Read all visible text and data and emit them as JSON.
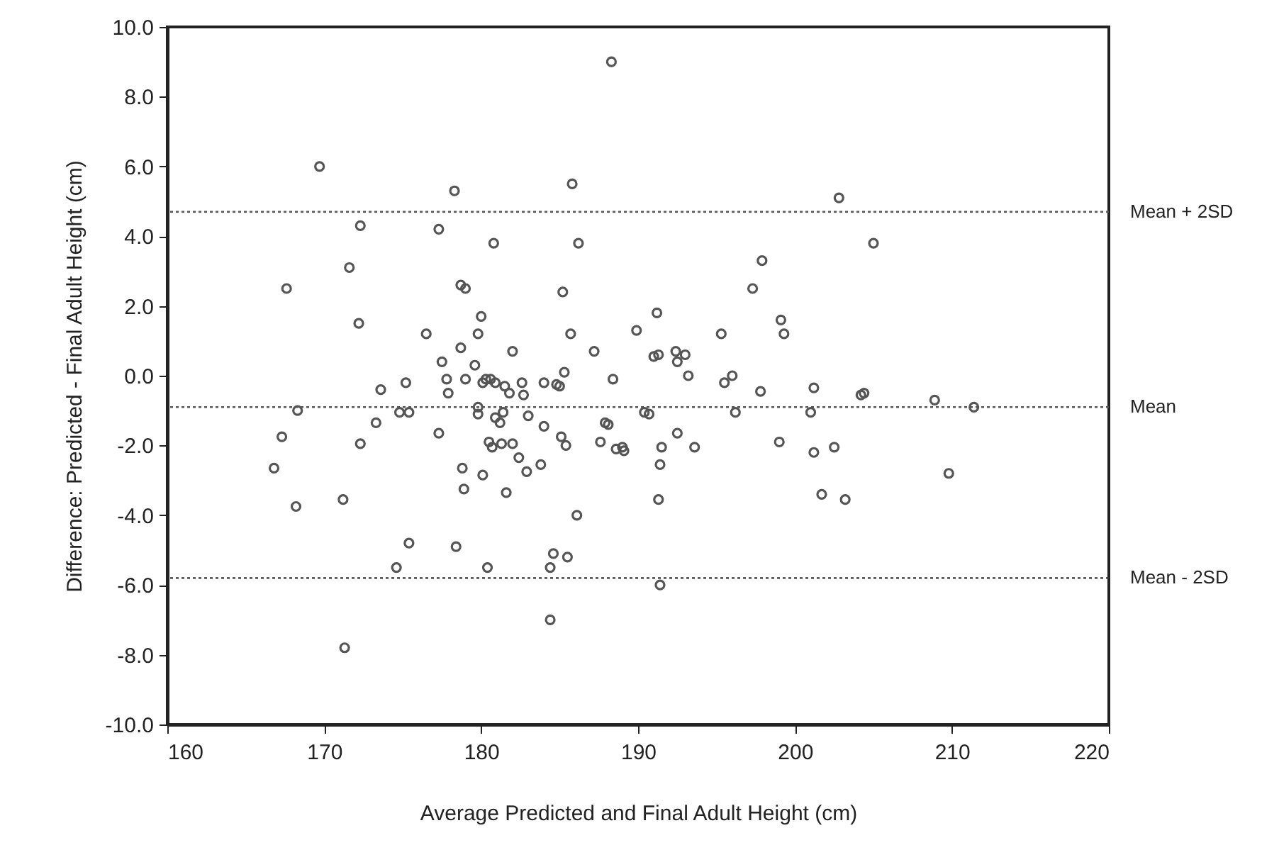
{
  "chart_data": {
    "type": "scatter",
    "xlabel": "Average Predicted and Final Adult Height (cm)",
    "ylabel": "Difference: Predicted - Final Adult Height (cm)",
    "xlim": [
      160,
      220
    ],
    "xticks": [
      160,
      170,
      180,
      190,
      200,
      210,
      220
    ],
    "ylim": [
      -10,
      10
    ],
    "yticks": [
      {
        "value": -10,
        "label": "-10.0"
      },
      {
        "value": -8,
        "label": "-8.0"
      },
      {
        "value": -6,
        "label": "-6.0"
      },
      {
        "value": -4,
        "label": "-4.0"
      },
      {
        "value": -2,
        "label": "-2.0"
      },
      {
        "value": 0,
        "label": "0.0"
      },
      {
        "value": 2,
        "label": "2.0"
      },
      {
        "value": 4,
        "label": "4.0"
      },
      {
        "value": 6,
        "label": "6.0"
      },
      {
        "value": 8,
        "label": "8.0"
      },
      {
        "value": 10,
        "label": "10.0"
      }
    ],
    "grid": false,
    "marker": "circle",
    "x": [
      166.8,
      167.3,
      167.6,
      168.2,
      168.3,
      169.7,
      171.2,
      171.3,
      171.6,
      172.2,
      172.3,
      172.3,
      173.3,
      173.6,
      174.8,
      174.6,
      175.2,
      175.4,
      175.4,
      176.5,
      177.3,
      177.3,
      177.5,
      177.8,
      177.9,
      178.3,
      178.4,
      178.7,
      178.7,
      178.8,
      178.9,
      179.0,
      179.0,
      179.6,
      179.8,
      179.8,
      179.8,
      180.0,
      180.1,
      180.1,
      180.3,
      180.5,
      180.4,
      180.6,
      180.7,
      180.8,
      180.9,
      180.9,
      181.2,
      181.4,
      181.3,
      181.5,
      181.6,
      181.8,
      182.0,
      182.0,
      182.4,
      182.6,
      182.7,
      182.9,
      183.0,
      183.8,
      184.0,
      184.0,
      184.4,
      184.4,
      184.6,
      184.8,
      185.0,
      185.1,
      185.2,
      185.3,
      185.4,
      185.5,
      185.7,
      185.8,
      186.2,
      186.1,
      187.2,
      187.6,
      187.9,
      188.1,
      188.3,
      188.4,
      188.6,
      189.0,
      189.1,
      189.9,
      190.4,
      190.7,
      191.0,
      191.2,
      191.3,
      191.3,
      191.4,
      191.4,
      191.5,
      192.4,
      192.5,
      192.5,
      193.0,
      193.2,
      193.6,
      195.3,
      195.5,
      196.0,
      196.2,
      197.3,
      197.8,
      197.9,
      199.0,
      199.1,
      199.3,
      201.0,
      201.2,
      201.2,
      201.7,
      202.5,
      202.8,
      203.2,
      204.2,
      204.4,
      205.0,
      208.9,
      209.8,
      211.4
    ],
    "series": [
      {
        "color": "#555555",
        "values": [
          -2.65,
          -1.75,
          2.5,
          -3.75,
          -1.0,
          6.0,
          -3.55,
          -7.8,
          3.1,
          1.5,
          4.3,
          -1.95,
          -1.35,
          -0.4,
          -1.05,
          -5.5,
          -0.2,
          -1.05,
          -4.8,
          1.2,
          4.2,
          -1.65,
          0.4,
          -0.1,
          -0.5,
          5.3,
          -4.9,
          0.8,
          2.6,
          -2.65,
          -3.25,
          2.5,
          -0.1,
          0.3,
          1.2,
          -0.9,
          -1.1,
          1.7,
          -2.85,
          -0.2,
          -0.1,
          -1.9,
          -5.5,
          -0.1,
          -2.05,
          3.8,
          -0.2,
          -1.2,
          -1.35,
          -1.05,
          -1.95,
          -0.3,
          -3.35,
          -0.5,
          0.7,
          -1.95,
          -2.35,
          -0.2,
          -0.55,
          -2.75,
          -1.15,
          -2.55,
          -0.2,
          -1.45,
          -5.5,
          -7.0,
          -5.1,
          -0.25,
          -0.3,
          -1.75,
          2.4,
          0.1,
          -2.0,
          -5.2,
          1.2,
          5.5,
          3.8,
          -4.0,
          0.7,
          -1.9,
          -1.35,
          -1.4,
          9.0,
          -0.1,
          -2.1,
          -2.05,
          -2.15,
          1.3,
          -1.05,
          -1.1,
          0.55,
          1.8,
          0.6,
          -3.55,
          -2.55,
          -6.0,
          -2.05,
          0.7,
          -1.65,
          0.4,
          0.6,
          0.0,
          -2.05,
          1.2,
          -0.2,
          0.0,
          -1.05,
          2.5,
          -0.45,
          3.3,
          -1.9,
          1.6,
          1.2,
          -1.05,
          -0.35,
          -2.2,
          -3.4,
          -2.05,
          5.1,
          -3.55,
          -0.55,
          -0.5,
          3.8,
          -0.7,
          -2.8,
          -0.9
        ]
      }
    ],
    "ref_lines": [
      {
        "axis": "y",
        "value": 4.7,
        "label": "Mean + 2SD",
        "color": "#555555",
        "line_style": "dotted"
      },
      {
        "axis": "y",
        "value": -0.9,
        "label": "Mean",
        "color": "#555555",
        "line_style": "dotted"
      },
      {
        "axis": "y",
        "value": -5.8,
        "label": "Mean - 2SD",
        "color": "#333333",
        "line_style": "dotted"
      }
    ]
  }
}
